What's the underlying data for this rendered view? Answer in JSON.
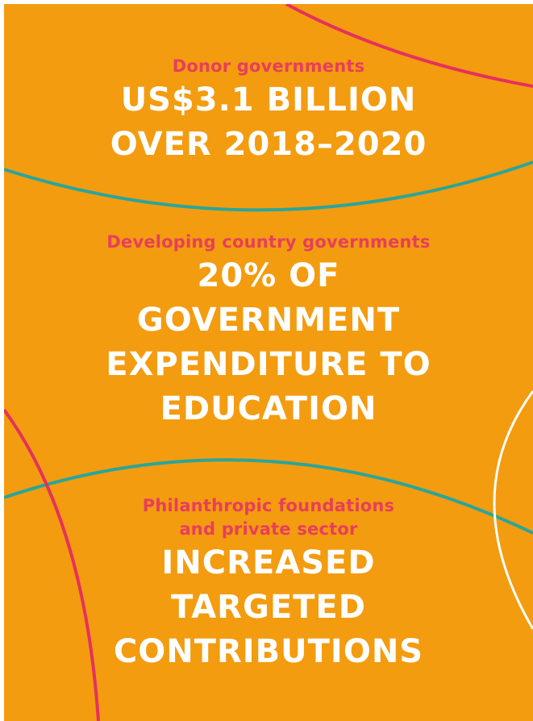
{
  "colors": {
    "background": "#F39C0F",
    "accent_label": "#E83E5B",
    "headline_text": "#FFFFFF",
    "teal_curve": "#2BA59A",
    "pink_curve": "#E6315C",
    "white_curve": "#FFFFFF"
  },
  "sections": [
    {
      "label_lines": [
        "Donor governments"
      ],
      "headline_lines": [
        "US$3.1 BILLION",
        "OVER 2018–2020"
      ]
    },
    {
      "label_lines": [
        "Developing country governments"
      ],
      "headline_lines": [
        "20% OF",
        "GOVERNMENT",
        "EXPENDITURE TO",
        "EDUCATION"
      ]
    },
    {
      "label_lines": [
        "Philanthropic foundations",
        "and private sector"
      ],
      "headline_lines": [
        "INCREASED",
        "TARGETED",
        "CONTRIBUTIONS"
      ]
    }
  ]
}
